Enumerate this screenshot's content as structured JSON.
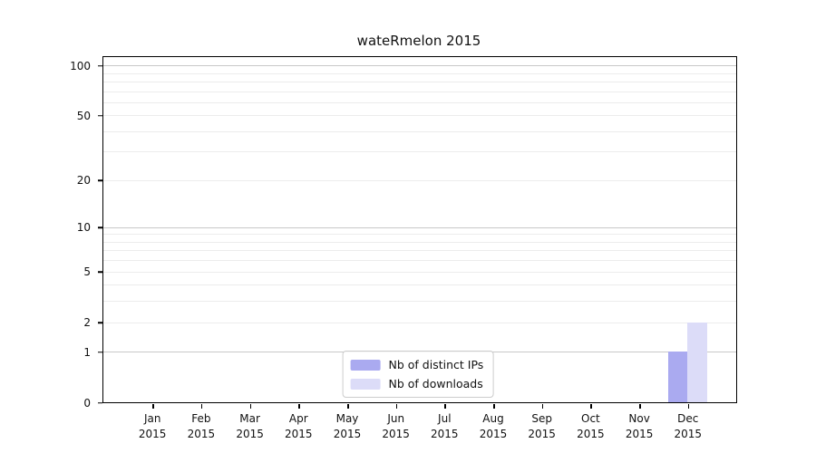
{
  "chart_data": {
    "type": "bar",
    "title": "wateRmelon 2015",
    "categories": [
      "Jan 2015",
      "Feb 2015",
      "Mar 2015",
      "Apr 2015",
      "May 2015",
      "Jun 2015",
      "Jul 2015",
      "Aug 2015",
      "Sep 2015",
      "Oct 2015",
      "Nov 2015",
      "Dec 2015"
    ],
    "series": [
      {
        "name": "Nb of distinct IPs",
        "color": "#aaaaf0",
        "values": [
          0,
          0,
          0,
          0,
          0,
          0,
          0,
          0,
          0,
          0,
          0,
          1
        ]
      },
      {
        "name": "Nb of downloads",
        "color": "#dcdcf8",
        "values": [
          0,
          0,
          0,
          0,
          0,
          0,
          0,
          0,
          0,
          0,
          0,
          2
        ]
      }
    ],
    "xlabel": "",
    "ylabel": "",
    "yscale": "log1p",
    "ylim": [
      0,
      112
    ],
    "y_tick_labels": [
      100,
      50,
      20,
      10,
      5,
      2,
      1,
      0
    ],
    "y_major_gridlines": [
      1,
      10,
      100
    ],
    "y_minor_gridlines": [
      2,
      3,
      4,
      5,
      6,
      7,
      8,
      9,
      20,
      30,
      40,
      50,
      60,
      70,
      80,
      90
    ],
    "grid": true,
    "legend_position": "bottom-center"
  },
  "colors": {
    "axis": "#000000",
    "grid_major": "#c8c8c8",
    "grid_minor": "#ececec",
    "legend_border": "#cccccc"
  }
}
